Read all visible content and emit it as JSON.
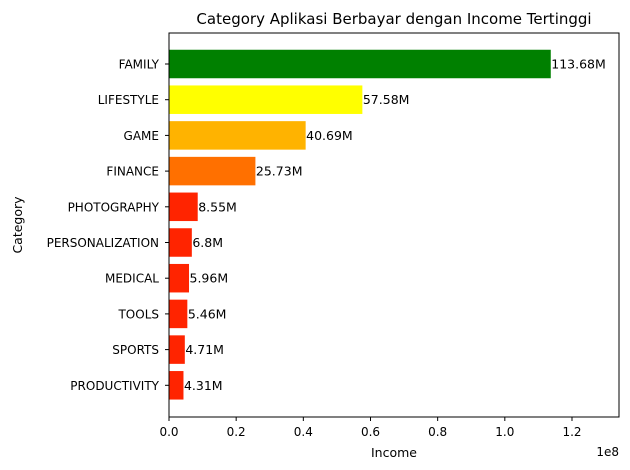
{
  "chart_data": {
    "type": "bar",
    "orientation": "horizontal",
    "title": "Category Aplikasi Berbayar dengan Income Tertinggi",
    "xlabel": "Income",
    "ylabel": "Category",
    "x_offset_label": "1e8",
    "categories": [
      "FAMILY",
      "LIFESTYLE",
      "GAME",
      "FINANCE",
      "PHOTOGRAPHY",
      "PERSONALIZATION",
      "MEDICAL",
      "TOOLS",
      "SPORTS",
      "PRODUCTIVITY"
    ],
    "values": [
      113680000,
      57580000,
      40690000,
      25730000,
      8550000,
      6800000,
      5960000,
      5460000,
      4710000,
      4310000
    ],
    "value_labels": [
      "113.68M",
      "57.58M",
      "40.69M",
      "25.73M",
      "8.55M",
      "6.8M",
      "5.96M",
      "5.46M",
      "4.71M",
      "4.31M"
    ],
    "colors": [
      "#008000",
      "#ffff00",
      "#ffb300",
      "#ff7000",
      "#ff2400",
      "#ff2400",
      "#ff2400",
      "#ff2400",
      "#ff2400",
      "#ff2400"
    ],
    "x_ticks": [
      0,
      20000000,
      40000000,
      60000000,
      80000000,
      100000000,
      120000000
    ],
    "x_tick_labels": [
      "0.0",
      "0.2",
      "0.4",
      "0.6",
      "0.8",
      "1.0",
      "1.2"
    ],
    "xlim": [
      0,
      134000000
    ],
    "grid": false,
    "legend": "none"
  }
}
